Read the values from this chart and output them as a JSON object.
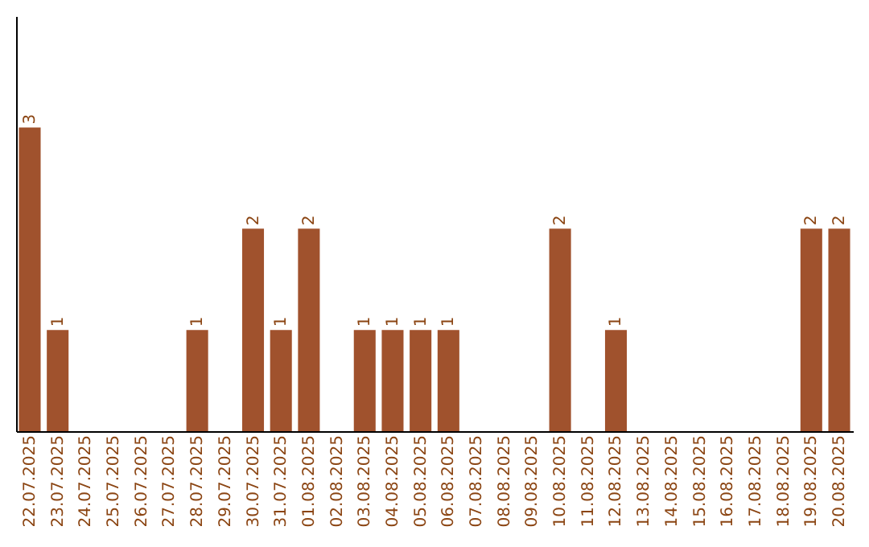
{
  "chart_data": {
    "type": "bar",
    "categories": [
      "22.07.2025",
      "23.07.2025",
      "24.07.2025",
      "25.07.2025",
      "26.07.2025",
      "27.07.2025",
      "28.07.2025",
      "29.07.2025",
      "30.07.2025",
      "31.07.2025",
      "01.08.2025",
      "02.08.2025",
      "03.08.2025",
      "04.08.2025",
      "05.08.2025",
      "06.08.2025",
      "07.08.2025",
      "08.08.2025",
      "09.08.2025",
      "10.08.2025",
      "11.08.2025",
      "12.08.2025",
      "13.08.2025",
      "14.08.2025",
      "15.08.2025",
      "16.08.2025",
      "17.08.2025",
      "18.08.2025",
      "19.08.2025",
      "20.08.2025"
    ],
    "values": [
      3,
      1,
      0,
      0,
      0,
      0,
      1,
      0,
      2,
      1,
      2,
      0,
      1,
      1,
      1,
      1,
      0,
      0,
      0,
      2,
      0,
      1,
      0,
      0,
      0,
      0,
      0,
      0,
      2,
      2
    ],
    "value_labels": [
      "3",
      "1",
      null,
      null,
      null,
      null,
      "1",
      null,
      "2",
      "1",
      "2",
      null,
      "1",
      "1",
      "1",
      "1",
      null,
      null,
      null,
      "2",
      null,
      "1",
      null,
      null,
      null,
      null,
      null,
      null,
      "2",
      "2"
    ],
    "color": "#a0522d",
    "ylim": [
      0,
      4.1
    ],
    "tick_labels": "x",
    "grid": false
  }
}
